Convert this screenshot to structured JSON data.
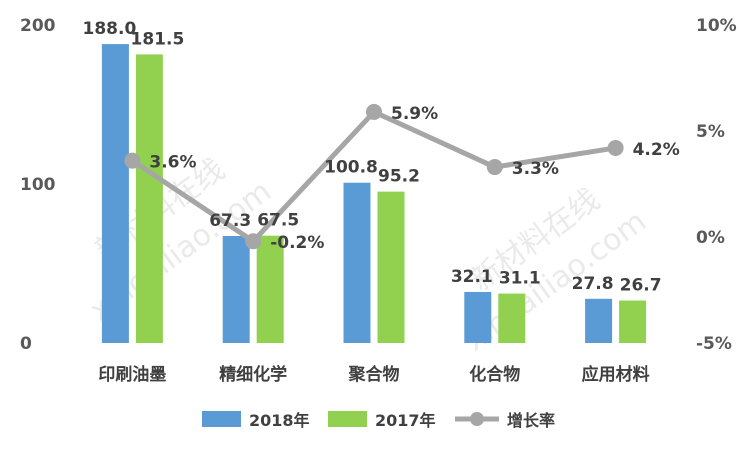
{
  "chart_data": {
    "type": "bar",
    "categories": [
      "印刷油墨",
      "精细化学",
      "聚合物",
      "化合物",
      "应用材料"
    ],
    "series": [
      {
        "name": "2018年",
        "values": [
          188.0,
          67.3,
          100.8,
          32.1,
          27.8
        ],
        "labels": [
          "188.0",
          "67.3",
          "100.8",
          "32.1",
          "27.8"
        ],
        "color": "#5b9bd5"
      },
      {
        "name": "2017年",
        "values": [
          181.5,
          67.5,
          95.2,
          31.1,
          26.7
        ],
        "labels": [
          "181.5",
          "67.5",
          "95.2",
          "31.1",
          "26.7"
        ],
        "color": "#92d050"
      }
    ],
    "line_series": {
      "name": "增长率",
      "values": [
        3.6,
        -0.2,
        5.9,
        3.3,
        4.2
      ],
      "labels": [
        "3.6%",
        "-0.2%",
        "5.9%",
        "3.3%",
        "4.2%"
      ],
      "color": "#a6a6a6",
      "axis": "right"
    },
    "y_left": {
      "ylim": [
        0,
        200
      ],
      "ticks": [
        0,
        100,
        200
      ],
      "tick_labels": [
        "0",
        "100",
        "200"
      ]
    },
    "y_right": {
      "ylim": [
        -5,
        10
      ],
      "ticks": [
        -5,
        0,
        5,
        10
      ],
      "tick_labels": [
        "-5%",
        "0%",
        "5%",
        "10%"
      ]
    },
    "legend_position": "bottom",
    "grid": false
  },
  "watermark": {
    "chinese": "新材料在线",
    "latin": "xincailiao.com"
  }
}
